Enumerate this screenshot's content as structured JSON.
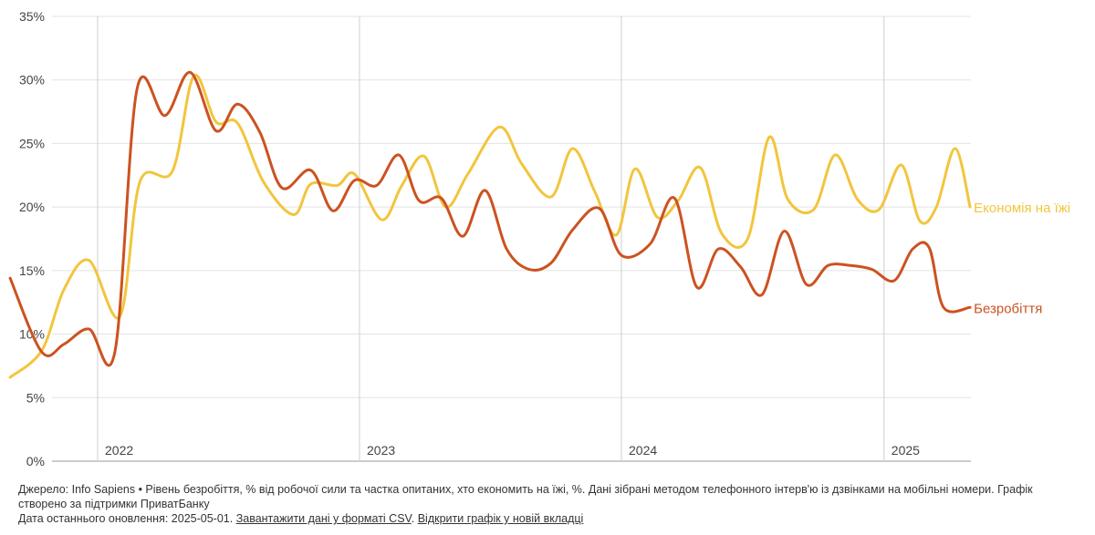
{
  "chart_data": {
    "type": "line",
    "ylim": [
      0,
      35
    ],
    "y_ticks": [
      0,
      5,
      10,
      15,
      20,
      25,
      30,
      35
    ],
    "y_tick_suffix": "%",
    "year_ticks": [
      {
        "x": "2022-01",
        "label": "2022"
      },
      {
        "x": "2023-01",
        "label": "2023"
      },
      {
        "x": "2024-01",
        "label": "2024"
      },
      {
        "x": "2025-01",
        "label": "2025"
      }
    ],
    "x_range": [
      "2021-09",
      "2025-04"
    ],
    "grid": true,
    "series": [
      {
        "name": "Економія на їжі",
        "color": "#f2c53d",
        "label_position": "end",
        "points": [
          {
            "x": "2021-09-01",
            "y": 6.6
          },
          {
            "x": "2021-10-15",
            "y": 8.7
          },
          {
            "x": "2021-11-15",
            "y": 13.5
          },
          {
            "x": "2021-12-20",
            "y": 15.8
          },
          {
            "x": "2022-02-01",
            "y": 11.4
          },
          {
            "x": "2022-03-01",
            "y": 22.0
          },
          {
            "x": "2022-04-15",
            "y": 22.8
          },
          {
            "x": "2022-05-15",
            "y": 30.3
          },
          {
            "x": "2022-06-15",
            "y": 26.7
          },
          {
            "x": "2022-07-15",
            "y": 26.6
          },
          {
            "x": "2022-08-20",
            "y": 22.0
          },
          {
            "x": "2022-10-01",
            "y": 19.4
          },
          {
            "x": "2022-10-25",
            "y": 21.8
          },
          {
            "x": "2022-12-01",
            "y": 21.7
          },
          {
            "x": "2022-12-25",
            "y": 22.6
          },
          {
            "x": "2023-02-01",
            "y": 19.0
          },
          {
            "x": "2023-03-01",
            "y": 21.7
          },
          {
            "x": "2023-04-01",
            "y": 24.0
          },
          {
            "x": "2023-05-01",
            "y": 20.0
          },
          {
            "x": "2023-06-01",
            "y": 22.6
          },
          {
            "x": "2023-07-15",
            "y": 26.3
          },
          {
            "x": "2023-08-15",
            "y": 23.4
          },
          {
            "x": "2023-09-25",
            "y": 20.8
          },
          {
            "x": "2023-10-25",
            "y": 24.6
          },
          {
            "x": "2023-11-25",
            "y": 21.2
          },
          {
            "x": "2023-12-25",
            "y": 17.8
          },
          {
            "x": "2024-01-20",
            "y": 23.0
          },
          {
            "x": "2024-02-20",
            "y": 19.2
          },
          {
            "x": "2024-03-20",
            "y": 20.5
          },
          {
            "x": "2024-04-20",
            "y": 23.1
          },
          {
            "x": "2024-05-20",
            "y": 17.9
          },
          {
            "x": "2024-06-25",
            "y": 17.5
          },
          {
            "x": "2024-07-25",
            "y": 25.5
          },
          {
            "x": "2024-08-20",
            "y": 20.6
          },
          {
            "x": "2024-09-25",
            "y": 19.8
          },
          {
            "x": "2024-10-25",
            "y": 24.1
          },
          {
            "x": "2024-11-25",
            "y": 20.6
          },
          {
            "x": "2024-12-25",
            "y": 19.8
          },
          {
            "x": "2025-01-25",
            "y": 23.3
          },
          {
            "x": "2025-02-20",
            "y": 18.9
          },
          {
            "x": "2025-03-15",
            "y": 20.0
          },
          {
            "x": "2025-04-10",
            "y": 24.6
          },
          {
            "x": "2025-05-01",
            "y": 20.0
          }
        ]
      },
      {
        "name": "Безробіття",
        "color": "#cc5221",
        "label_position": "end",
        "points": [
          {
            "x": "2021-09-01",
            "y": 14.4
          },
          {
            "x": "2021-10-15",
            "y": 8.6
          },
          {
            "x": "2021-11-15",
            "y": 9.2
          },
          {
            "x": "2021-12-20",
            "y": 10.4
          },
          {
            "x": "2022-01-25",
            "y": 8.6
          },
          {
            "x": "2022-02-25",
            "y": 29.3
          },
          {
            "x": "2022-04-05",
            "y": 27.2
          },
          {
            "x": "2022-05-10",
            "y": 30.6
          },
          {
            "x": "2022-06-15",
            "y": 26.0
          },
          {
            "x": "2022-07-15",
            "y": 28.1
          },
          {
            "x": "2022-08-15",
            "y": 25.9
          },
          {
            "x": "2022-09-15",
            "y": 21.5
          },
          {
            "x": "2022-10-25",
            "y": 22.9
          },
          {
            "x": "2022-11-25",
            "y": 19.7
          },
          {
            "x": "2022-12-25",
            "y": 22.1
          },
          {
            "x": "2023-01-25",
            "y": 21.7
          },
          {
            "x": "2023-02-25",
            "y": 24.1
          },
          {
            "x": "2023-03-25",
            "y": 20.5
          },
          {
            "x": "2023-04-25",
            "y": 20.7
          },
          {
            "x": "2023-05-25",
            "y": 17.7
          },
          {
            "x": "2023-06-25",
            "y": 21.3
          },
          {
            "x": "2023-07-25",
            "y": 16.7
          },
          {
            "x": "2023-08-25",
            "y": 15.1
          },
          {
            "x": "2023-09-25",
            "y": 15.6
          },
          {
            "x": "2023-10-25",
            "y": 18.2
          },
          {
            "x": "2023-12-01",
            "y": 19.9
          },
          {
            "x": "2024-01-01",
            "y": 16.2
          },
          {
            "x": "2024-02-10",
            "y": 17.1
          },
          {
            "x": "2024-03-15",
            "y": 20.7
          },
          {
            "x": "2024-04-15",
            "y": 13.7
          },
          {
            "x": "2024-05-15",
            "y": 16.7
          },
          {
            "x": "2024-06-15",
            "y": 15.3
          },
          {
            "x": "2024-07-15",
            "y": 13.1
          },
          {
            "x": "2024-08-15",
            "y": 18.1
          },
          {
            "x": "2024-09-15",
            "y": 13.9
          },
          {
            "x": "2024-10-15",
            "y": 15.4
          },
          {
            "x": "2024-11-15",
            "y": 15.4
          },
          {
            "x": "2024-12-15",
            "y": 15.1
          },
          {
            "x": "2025-01-15",
            "y": 14.2
          },
          {
            "x": "2025-02-10",
            "y": 16.7
          },
          {
            "x": "2025-03-05",
            "y": 16.8
          },
          {
            "x": "2025-03-25",
            "y": 12.1
          },
          {
            "x": "2025-05-01",
            "y": 12.1
          }
        ]
      }
    ]
  },
  "footer": {
    "source_text": "Джерело: Info Sapiens • Рівень безробіття, % від робочої сили та частка опитаних, хто економить на їжі, %. Дані зібрані методом телефонного інтерв'ю із дзвінками на мобільні номери. Графік створено за підтримки ПриватБанку",
    "updated_prefix": "Дата останнього оновлення: 2025-05-01.",
    "csv_link": "Завантажити дані у форматі CSV",
    "separator": ".",
    "open_link": "Відкрити графік у новій вкладці"
  }
}
